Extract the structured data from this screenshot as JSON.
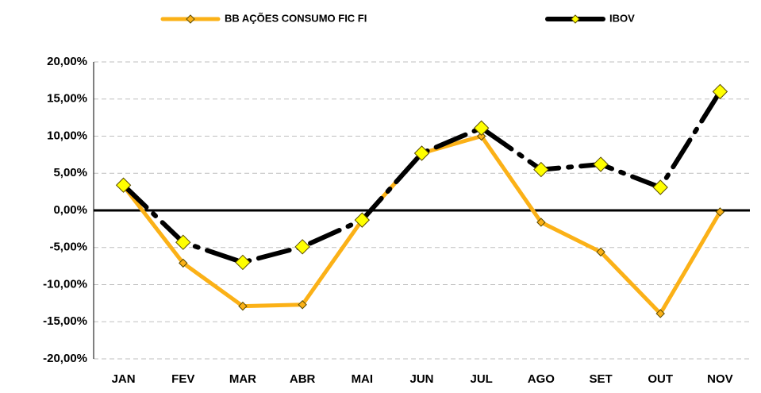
{
  "chart_data": {
    "type": "line",
    "categories": [
      "JAN",
      "FEV",
      "MAR",
      "ABR",
      "MAI",
      "JUN",
      "JUL",
      "AGO",
      "SET",
      "OUT",
      "NOV"
    ],
    "series": [
      {
        "name": "BB AÇÕES CONSUMO FIC FI",
        "color": "#fbb117",
        "values": [
          3.3,
          -7.1,
          -12.9,
          -12.7,
          -1.3,
          7.7,
          10.0,
          -1.6,
          -5.6,
          -13.9,
          -0.2
        ]
      },
      {
        "name": "IBOV",
        "color": "#000000",
        "values": [
          3.4,
          -4.3,
          -7.0,
          -4.9,
          -1.3,
          7.7,
          11.1,
          5.5,
          6.2,
          3.1,
          16.0
        ]
      }
    ],
    "ylim": [
      -20,
      20
    ],
    "yticks": [
      {
        "value": -20,
        "label": "-20,00%"
      },
      {
        "value": -15,
        "label": "-15,00%"
      },
      {
        "value": -10,
        "label": "-10,00%"
      },
      {
        "value": -5,
        "label": "-5,00%"
      },
      {
        "value": 0,
        "label": "0,00%"
      },
      {
        "value": 5,
        "label": "5,00%"
      },
      {
        "value": 10,
        "label": "10,00%"
      },
      {
        "value": 15,
        "label": "15,00%"
      },
      {
        "value": 20,
        "label": "20,00%"
      }
    ],
    "grid": true
  }
}
